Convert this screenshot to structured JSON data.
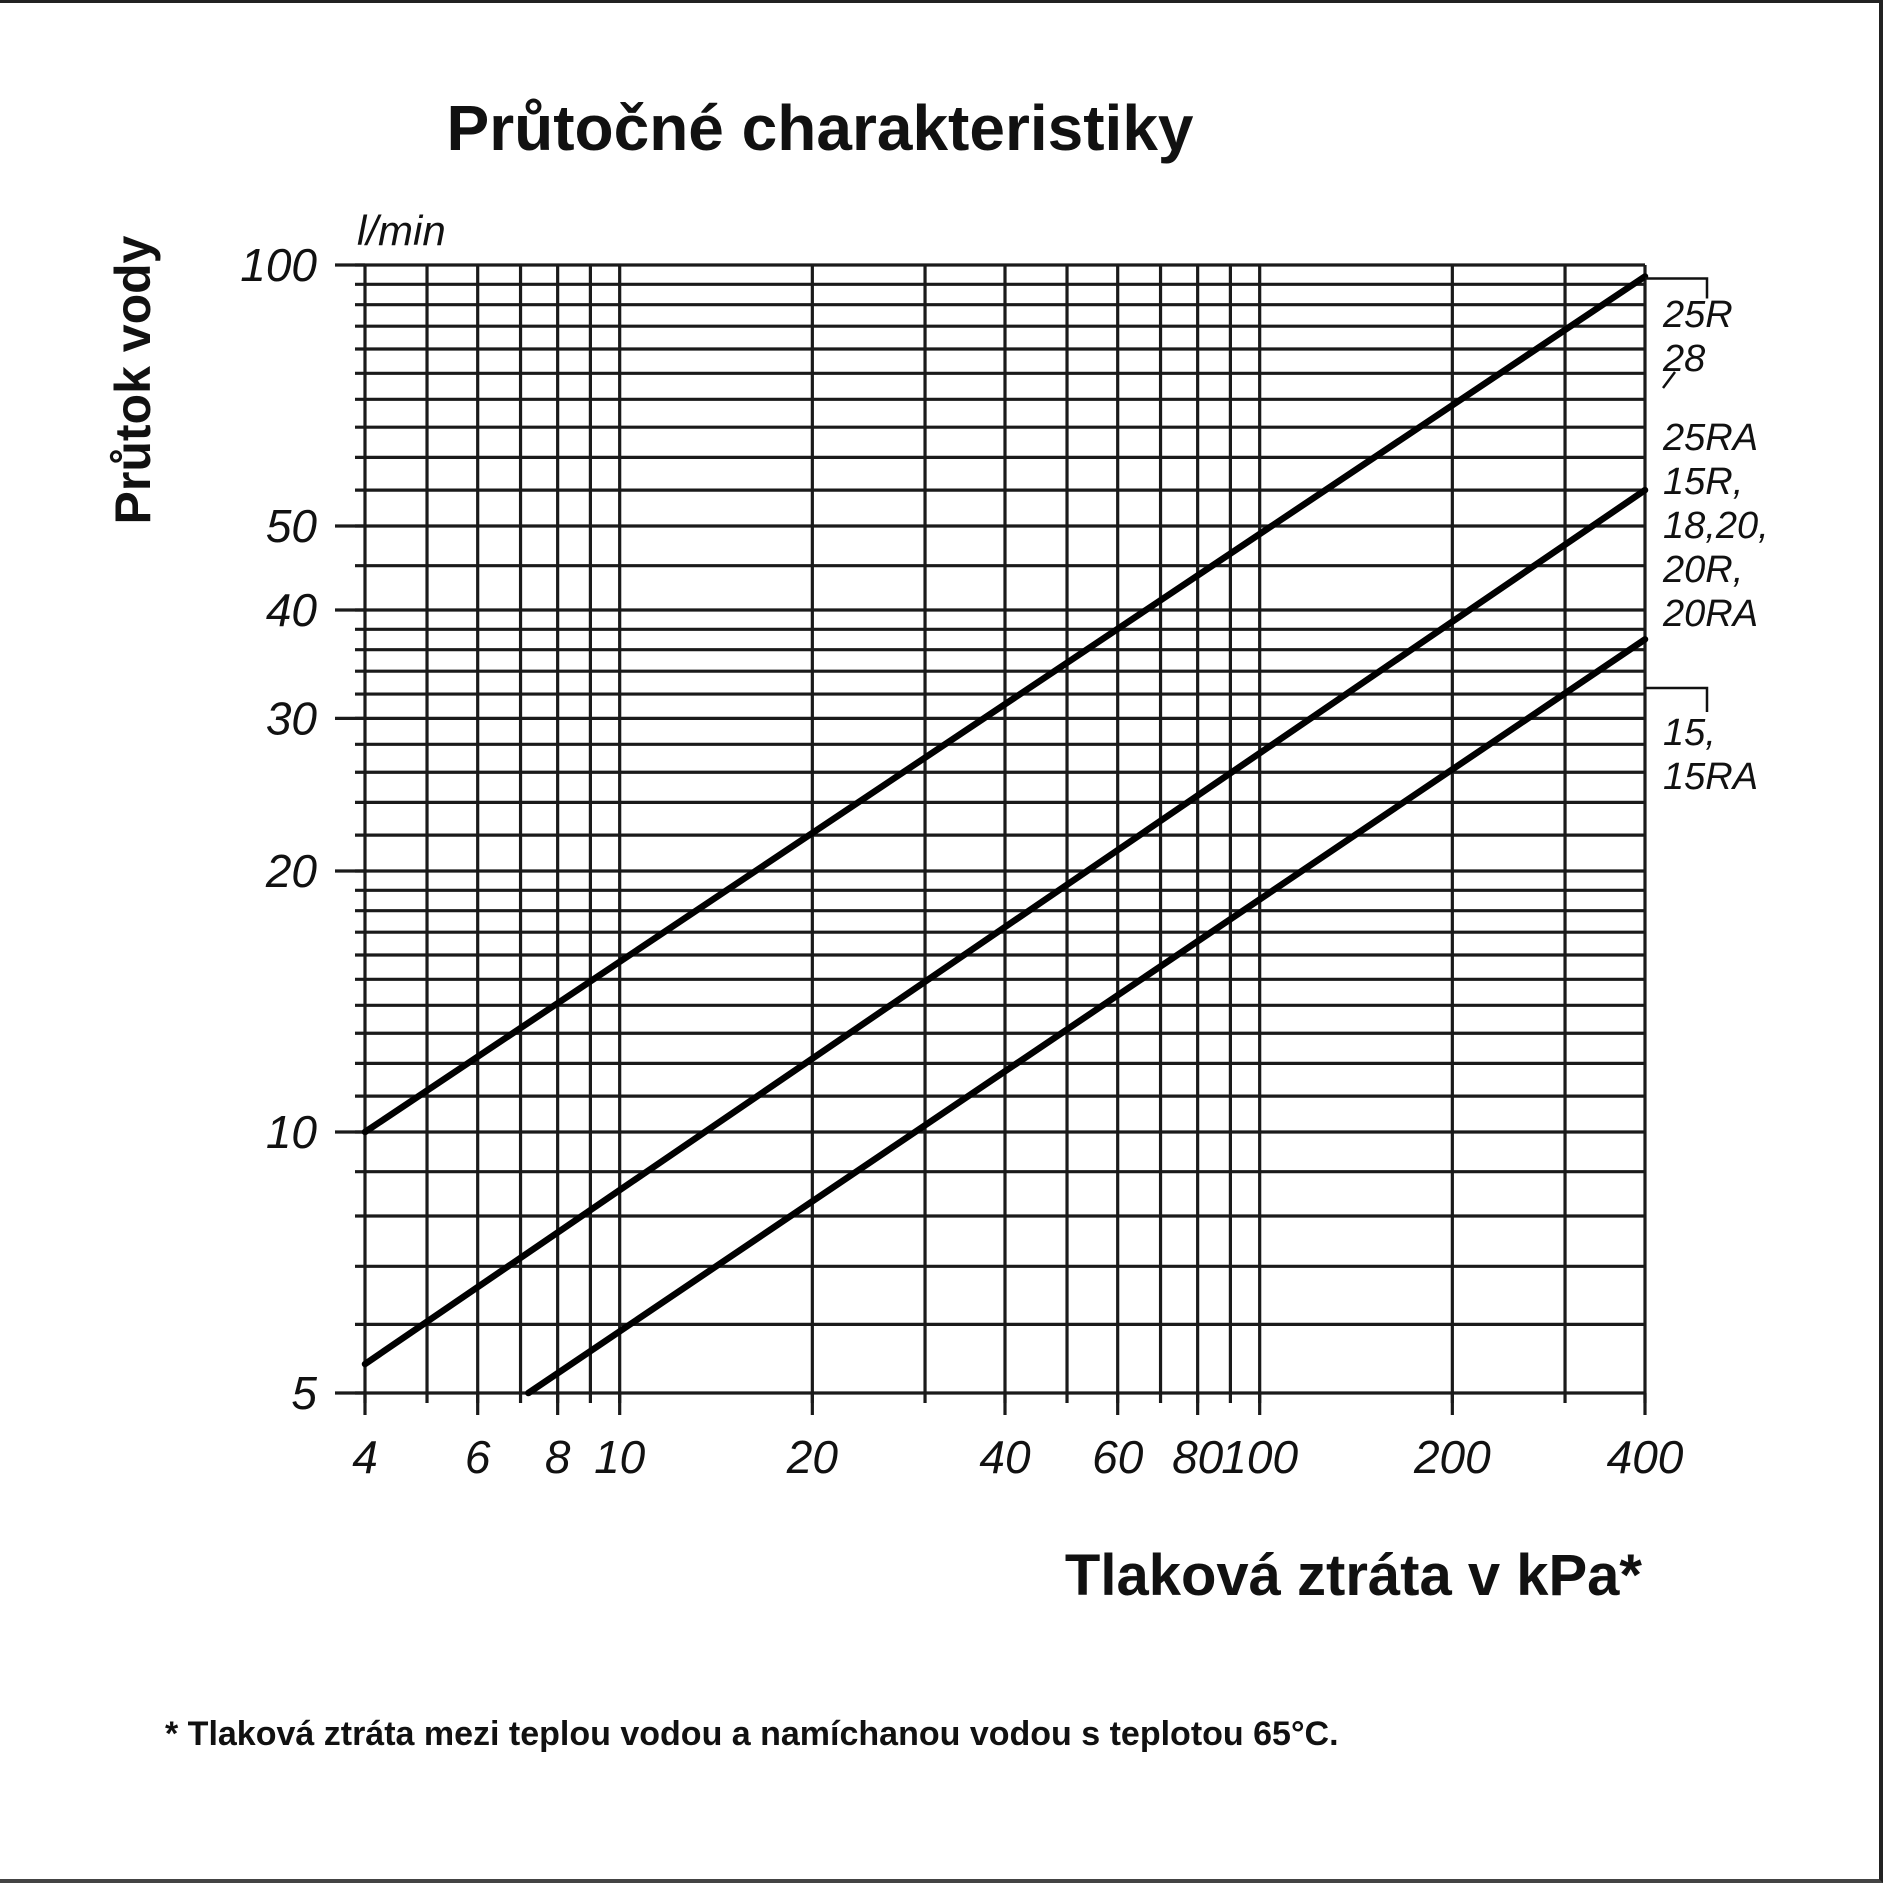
{
  "chart_data": {
    "type": "line",
    "title": "Průtočné charakteristiky",
    "xlabel": "Tlaková ztráta v kPa*",
    "ylabel": "Průtok vody",
    "y_unit": "l/min",
    "x_scale": "log",
    "y_scale": "log",
    "xlim": [
      4,
      400
    ],
    "ylim": [
      5,
      100
    ],
    "grid": true,
    "x_ticks": [
      {
        "value": 4,
        "label": "4"
      },
      {
        "value": 6,
        "label": "6"
      },
      {
        "value": 8,
        "label": "8"
      },
      {
        "value": 10,
        "label": "10"
      },
      {
        "value": 20,
        "label": "20"
      },
      {
        "value": 40,
        "label": "40"
      },
      {
        "value": 60,
        "label": "60"
      },
      {
        "value": 80,
        "label": "80"
      },
      {
        "value": 100,
        "label": "100"
      },
      {
        "value": 200,
        "label": "200"
      },
      {
        "value": 400,
        "label": "400"
      }
    ],
    "y_ticks": [
      {
        "value": 5,
        "label": "5"
      },
      {
        "value": 10,
        "label": "10"
      },
      {
        "value": 20,
        "label": "20"
      },
      {
        "value": 30,
        "label": "30"
      },
      {
        "value": 40,
        "label": "40"
      },
      {
        "value": 50,
        "label": "50"
      },
      {
        "value": 100,
        "label": "100"
      }
    ],
    "x_gridlines": [
      4,
      5,
      6,
      7,
      8,
      9,
      10,
      20,
      30,
      40,
      50,
      60,
      70,
      80,
      90,
      100,
      200,
      300,
      400
    ],
    "y_gridlines": [
      5,
      6,
      7,
      8,
      9,
      10,
      11,
      12,
      13,
      14,
      15,
      16,
      17,
      18,
      19,
      20,
      22,
      24,
      26,
      28,
      30,
      32,
      34,
      36,
      38,
      40,
      45,
      50,
      55,
      60,
      65,
      70,
      75,
      80,
      85,
      90,
      95,
      100
    ],
    "series": [
      {
        "name_lines": [
          "25R",
          "28"
        ],
        "x": [
          4,
          400
        ],
        "y": [
          10,
          97
        ]
      },
      {
        "name_lines": [
          "25RA",
          "15R,",
          "18,20,",
          "20R,",
          "20RA"
        ],
        "x": [
          4,
          400
        ],
        "y": [
          5.4,
          55
        ]
      },
      {
        "name_lines": [
          "15,",
          "15RA"
        ],
        "x": [
          7.2,
          400
        ],
        "y": [
          5,
          37
        ]
      }
    ],
    "footnote": "* Tlaková ztráta mezi teplou vodou a namíchanou vodou s teplotou 65°C."
  }
}
